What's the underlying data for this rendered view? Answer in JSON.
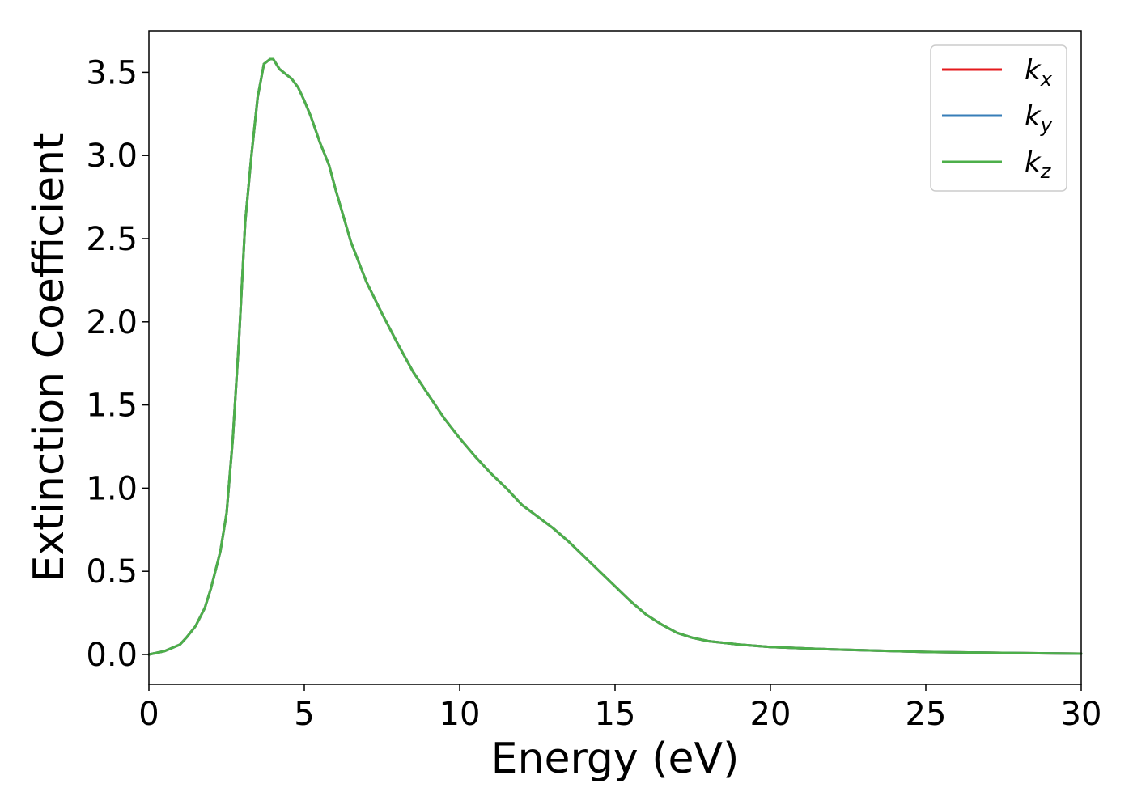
{
  "chart_data": {
    "type": "line",
    "title": "",
    "xlabel": "Energy (eV)",
    "ylabel": "Extinction Coefficient",
    "xlim": [
      0,
      30
    ],
    "ylim": [
      -0.18,
      3.75
    ],
    "x_ticks": [
      0,
      5,
      10,
      15,
      20,
      25,
      30
    ],
    "x_tick_labels": [
      "0",
      "5",
      "10",
      "15",
      "20",
      "25",
      "30"
    ],
    "y_ticks": [
      0.0,
      0.5,
      1.0,
      1.5,
      2.0,
      2.5,
      3.0,
      3.5
    ],
    "y_tick_labels": [
      "0.0",
      "0.5",
      "1.0",
      "1.5",
      "2.0",
      "2.5",
      "3.0",
      "3.5"
    ],
    "grid": false,
    "legend_placement": "top-right",
    "x": [
      0,
      0.5,
      1.0,
      1.2,
      1.5,
      1.8,
      2.0,
      2.3,
      2.5,
      2.7,
      2.9,
      3.1,
      3.3,
      3.5,
      3.7,
      3.9,
      4.0,
      4.1,
      4.2,
      4.4,
      4.6,
      4.8,
      5.0,
      5.2,
      5.5,
      5.8,
      6.0,
      6.5,
      7.0,
      7.5,
      8.0,
      8.5,
      9.0,
      9.5,
      10.0,
      10.5,
      11.0,
      11.5,
      12.0,
      12.5,
      13.0,
      13.5,
      14.0,
      14.5,
      15.0,
      15.5,
      16.0,
      16.5,
      17.0,
      17.5,
      18.0,
      19.0,
      20.0,
      22.0,
      25.0,
      28.0,
      30.0
    ],
    "series": [
      {
        "name": "k_x",
        "label_base": "k",
        "label_sub": "x",
        "color": "#e41a1c",
        "values": [
          0.0,
          0.02,
          0.06,
          0.1,
          0.17,
          0.28,
          0.4,
          0.62,
          0.85,
          1.3,
          1.9,
          2.6,
          3.0,
          3.35,
          3.55,
          3.58,
          3.58,
          3.55,
          3.52,
          3.49,
          3.46,
          3.41,
          3.33,
          3.24,
          3.08,
          2.94,
          2.8,
          2.48,
          2.24,
          2.05,
          1.87,
          1.7,
          1.56,
          1.42,
          1.3,
          1.19,
          1.09,
          1.0,
          0.9,
          0.83,
          0.76,
          0.68,
          0.59,
          0.5,
          0.41,
          0.32,
          0.24,
          0.18,
          0.13,
          0.1,
          0.08,
          0.06,
          0.045,
          0.03,
          0.015,
          0.008,
          0.005
        ]
      },
      {
        "name": "k_y",
        "label_base": "k",
        "label_sub": "y",
        "color": "#377eb8",
        "values": [
          0.0,
          0.02,
          0.06,
          0.1,
          0.17,
          0.28,
          0.4,
          0.62,
          0.85,
          1.3,
          1.9,
          2.6,
          3.0,
          3.35,
          3.55,
          3.58,
          3.58,
          3.55,
          3.52,
          3.49,
          3.46,
          3.41,
          3.33,
          3.24,
          3.08,
          2.94,
          2.8,
          2.48,
          2.24,
          2.05,
          1.87,
          1.7,
          1.56,
          1.42,
          1.3,
          1.19,
          1.09,
          1.0,
          0.9,
          0.83,
          0.76,
          0.68,
          0.59,
          0.5,
          0.41,
          0.32,
          0.24,
          0.18,
          0.13,
          0.1,
          0.08,
          0.06,
          0.045,
          0.03,
          0.015,
          0.008,
          0.005
        ]
      },
      {
        "name": "k_z",
        "label_base": "k",
        "label_sub": "z",
        "color": "#4daf4a",
        "values": [
          0.0,
          0.02,
          0.06,
          0.1,
          0.17,
          0.28,
          0.4,
          0.62,
          0.85,
          1.3,
          1.9,
          2.6,
          3.0,
          3.35,
          3.55,
          3.58,
          3.58,
          3.55,
          3.52,
          3.49,
          3.46,
          3.41,
          3.33,
          3.24,
          3.08,
          2.94,
          2.8,
          2.48,
          2.24,
          2.05,
          1.87,
          1.7,
          1.56,
          1.42,
          1.3,
          1.19,
          1.09,
          1.0,
          0.9,
          0.83,
          0.76,
          0.68,
          0.59,
          0.5,
          0.41,
          0.32,
          0.24,
          0.18,
          0.13,
          0.1,
          0.08,
          0.06,
          0.045,
          0.03,
          0.015,
          0.008,
          0.005
        ]
      }
    ]
  }
}
